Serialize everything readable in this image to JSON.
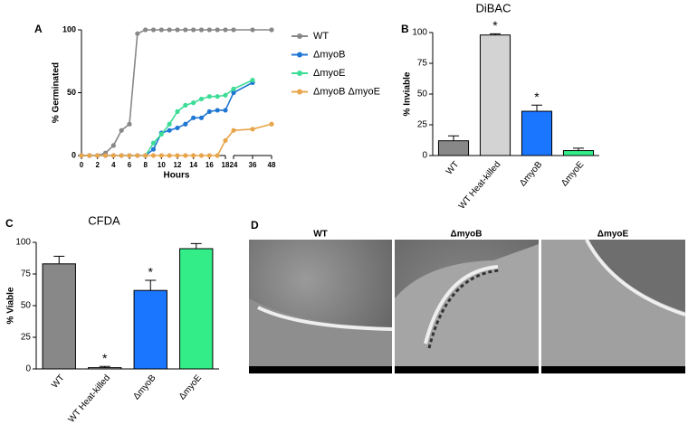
{
  "chart_data": [
    {
      "type": "line",
      "panel": "A",
      "ylabel": "% Germinated",
      "xlabel": "Hours",
      "x": [
        0,
        1,
        2,
        3,
        4,
        5,
        6,
        7,
        8,
        9,
        10,
        11,
        12,
        13,
        14,
        15,
        16,
        17,
        18,
        24,
        36,
        48
      ],
      "xlim": [
        0,
        48
      ],
      "x_break": [
        18,
        24
      ],
      "xticks": [
        0,
        2,
        4,
        6,
        8,
        10,
        12,
        14,
        16,
        18,
        24,
        36,
        48
      ],
      "ylim": [
        0,
        100
      ],
      "yticks": [
        0,
        50,
        100
      ],
      "series": [
        {
          "name": "WT",
          "color": "#888888",
          "values": [
            0,
            0,
            0,
            2,
            8,
            20,
            25,
            97,
            100,
            100,
            100,
            100,
            100,
            100,
            100,
            100,
            100,
            100,
            100,
            100,
            100,
            100
          ]
        },
        {
          "name": "ΔmyoB",
          "color": "#1f77d4",
          "values": [
            0,
            0,
            0,
            0,
            0,
            0,
            0,
            0,
            0,
            5,
            18,
            20,
            22,
            25,
            30,
            30,
            35,
            36,
            36,
            50,
            58,
            null
          ]
        },
        {
          "name": "ΔmyoE",
          "color": "#3ddc97",
          "values": [
            null,
            null,
            null,
            null,
            null,
            null,
            null,
            null,
            0,
            10,
            17,
            25,
            35,
            40,
            42,
            45,
            47,
            47,
            48,
            53,
            60,
            null
          ]
        },
        {
          "name": "ΔmyoB ΔmyoE",
          "color": "#e8a54b",
          "values": [
            0,
            0,
            0,
            0,
            0,
            0,
            0,
            0,
            0,
            0,
            0,
            0,
            0,
            0,
            0,
            0,
            0,
            0,
            12,
            20,
            21,
            25
          ]
        }
      ]
    },
    {
      "type": "bar",
      "panel": "B",
      "title": "DiBAC",
      "ylabel": "% Inviable",
      "categories": [
        "WT",
        "WT Heat-killed",
        "ΔmyoB",
        "ΔmyoE"
      ],
      "values": [
        12,
        98,
        36,
        4
      ],
      "errors": [
        4,
        1,
        5,
        2
      ],
      "significance": [
        null,
        "*",
        "*",
        null
      ],
      "colors": [
        "#888888",
        "#d3d3d3",
        "#1a75ff",
        "#33ee88"
      ],
      "ylim": [
        0,
        100
      ],
      "yticks": [
        0,
        25,
        50,
        75,
        100
      ]
    },
    {
      "type": "bar",
      "panel": "C",
      "title": "CFDA",
      "ylabel": "% Viable",
      "categories": [
        "WT",
        "WT Heat-killed",
        "ΔmyoB",
        "ΔmyoE"
      ],
      "values": [
        83,
        1,
        62,
        95
      ],
      "errors": [
        6,
        1,
        8,
        4
      ],
      "significance": [
        null,
        "*",
        "*",
        null
      ],
      "colors": [
        "#888888",
        "#d3d3d3",
        "#1a75ff",
        "#33ee88"
      ],
      "ylim": [
        0,
        100
      ],
      "yticks": [
        0,
        25,
        50,
        75,
        100
      ]
    }
  ],
  "micrographs": {
    "panel": "D",
    "titles": [
      "WT",
      "ΔmyoB",
      "ΔmyoE"
    ]
  }
}
